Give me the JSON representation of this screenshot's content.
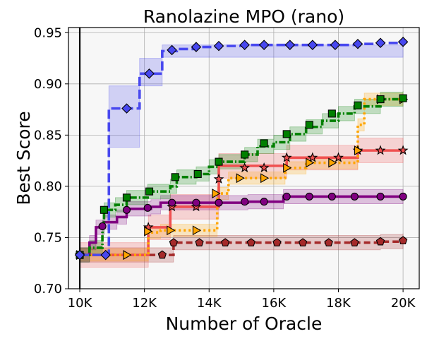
{
  "chart_data": {
    "type": "line",
    "title": "Ranolazine MPO (rano)",
    "xlabel": "Number of Oracle",
    "ylabel": "Best Score",
    "xlim": [
      9650,
      20500
    ],
    "ylim": [
      0.7,
      0.955
    ],
    "xticks": [
      10000,
      12000,
      14000,
      16000,
      18000,
      20000
    ],
    "xtick_labels": [
      "10K",
      "12K",
      "14K",
      "16K",
      "18K",
      "20K"
    ],
    "yticks": [
      0.7,
      0.75,
      0.8,
      0.85,
      0.9,
      0.95
    ],
    "ytick_labels": [
      "0.70",
      "0.75",
      "0.80",
      "0.85",
      "0.90",
      "0.95"
    ],
    "grid": true,
    "vline_x": 10000,
    "series": [
      {
        "name": "brown-pentagon",
        "color": "#a52a2a",
        "dash": "9,5",
        "marker": "pentagon",
        "band": 0.007,
        "points": [
          [
            10000,
            0.733
          ],
          [
            10300,
            0.733
          ],
          [
            10900,
            0.733
          ],
          [
            12000,
            0.733
          ],
          [
            12550,
            0.733
          ],
          [
            12880,
            0.733
          ],
          [
            12900,
            0.745
          ],
          [
            13500,
            0.745
          ],
          [
            14200,
            0.745
          ],
          [
            14800,
            0.745
          ],
          [
            15500,
            0.745
          ],
          [
            16000,
            0.745
          ],
          [
            16600,
            0.745
          ],
          [
            17200,
            0.745
          ],
          [
            17900,
            0.745
          ],
          [
            18500,
            0.745
          ],
          [
            19300,
            0.746
          ],
          [
            20000,
            0.747
          ]
        ],
        "markers": [
          [
            10000,
            0.733
          ],
          [
            12550,
            0.733
          ],
          [
            12900,
            0.745
          ],
          [
            13700,
            0.745
          ],
          [
            14500,
            0.745
          ],
          [
            15300,
            0.745
          ],
          [
            16100,
            0.745
          ],
          [
            16900,
            0.745
          ],
          [
            17700,
            0.745
          ],
          [
            18500,
            0.745
          ],
          [
            19300,
            0.746
          ],
          [
            20000,
            0.747
          ]
        ]
      },
      {
        "name": "red-star",
        "color": "#f05050",
        "dash": "",
        "marker": "star",
        "band": 0.012,
        "points": [
          [
            10000,
            0.733
          ],
          [
            11000,
            0.733
          ],
          [
            12100,
            0.733
          ],
          [
            12120,
            0.76
          ],
          [
            12800,
            0.78
          ],
          [
            13600,
            0.78
          ],
          [
            14250,
            0.78
          ],
          [
            14300,
            0.82
          ],
          [
            15000,
            0.82
          ],
          [
            16350,
            0.82
          ],
          [
            16400,
            0.828
          ],
          [
            17500,
            0.828
          ],
          [
            18500,
            0.828
          ],
          [
            18600,
            0.835
          ],
          [
            20000,
            0.835
          ]
        ],
        "markers": [
          [
            10000,
            0.733
          ],
          [
            12120,
            0.76
          ],
          [
            12850,
            0.78
          ],
          [
            13600,
            0.78
          ],
          [
            14300,
            0.807
          ],
          [
            15100,
            0.818
          ],
          [
            15700,
            0.818
          ],
          [
            16400,
            0.828
          ],
          [
            17200,
            0.828
          ],
          [
            18000,
            0.828
          ],
          [
            18600,
            0.835
          ],
          [
            19300,
            0.835
          ],
          [
            20000,
            0.835
          ]
        ]
      },
      {
        "name": "orange-triangle",
        "color": "#ffa500",
        "dash": "3,4",
        "marker": "triangle",
        "band": 0.006,
        "points": [
          [
            10000,
            0.733
          ],
          [
            11500,
            0.733
          ],
          [
            12100,
            0.733
          ],
          [
            12120,
            0.755
          ],
          [
            12500,
            0.757
          ],
          [
            13500,
            0.757
          ],
          [
            14200,
            0.757
          ],
          [
            14250,
            0.793
          ],
          [
            14600,
            0.808
          ],
          [
            16300,
            0.808
          ],
          [
            16350,
            0.818
          ],
          [
            17000,
            0.823
          ],
          [
            18500,
            0.823
          ],
          [
            18600,
            0.86
          ],
          [
            18800,
            0.885
          ],
          [
            20000,
            0.885
          ]
        ],
        "markers": [
          [
            10000,
            0.733
          ],
          [
            11450,
            0.733
          ],
          [
            12100,
            0.756
          ],
          [
            12800,
            0.757
          ],
          [
            13600,
            0.757
          ],
          [
            14200,
            0.793
          ],
          [
            14950,
            0.808
          ],
          [
            15700,
            0.808
          ],
          [
            16400,
            0.818
          ],
          [
            17100,
            0.823
          ],
          [
            17800,
            0.823
          ],
          [
            18600,
            0.835
          ],
          [
            19300,
            0.885
          ],
          [
            20000,
            0.885
          ]
        ]
      },
      {
        "name": "purple-circle",
        "color": "#800080",
        "dash": "",
        "marker": "circle",
        "band": 0.007,
        "points": [
          [
            10000,
            0.733
          ],
          [
            10300,
            0.745
          ],
          [
            10500,
            0.76
          ],
          [
            10750,
            0.765
          ],
          [
            11150,
            0.77
          ],
          [
            11450,
            0.778
          ],
          [
            12200,
            0.78
          ],
          [
            12500,
            0.784
          ],
          [
            14300,
            0.784
          ],
          [
            15200,
            0.785
          ],
          [
            16100,
            0.785
          ],
          [
            16300,
            0.79
          ],
          [
            18000,
            0.79
          ],
          [
            20000,
            0.79
          ]
        ],
        "markers": [
          [
            10000,
            0.733
          ],
          [
            10700,
            0.761
          ],
          [
            11450,
            0.777
          ],
          [
            12100,
            0.779
          ],
          [
            12850,
            0.784
          ],
          [
            13600,
            0.784
          ],
          [
            14300,
            0.784
          ],
          [
            15100,
            0.785
          ],
          [
            15700,
            0.785
          ],
          [
            16400,
            0.79
          ],
          [
            17100,
            0.79
          ],
          [
            17800,
            0.79
          ],
          [
            18500,
            0.79
          ],
          [
            19300,
            0.79
          ],
          [
            20000,
            0.79
          ]
        ]
      },
      {
        "name": "green-square",
        "color": "#008000",
        "dash": "9,3,2,3",
        "marker": "square",
        "band": 0.007,
        "points": [
          [
            10000,
            0.733
          ],
          [
            10300,
            0.74
          ],
          [
            10700,
            0.76
          ],
          [
            10750,
            0.777
          ],
          [
            11100,
            0.782
          ],
          [
            11450,
            0.789
          ],
          [
            12100,
            0.795
          ],
          [
            12800,
            0.8
          ],
          [
            13000,
            0.809
          ],
          [
            13600,
            0.812
          ],
          [
            14000,
            0.819
          ],
          [
            14300,
            0.824
          ],
          [
            15100,
            0.831
          ],
          [
            15500,
            0.839
          ],
          [
            16000,
            0.843
          ],
          [
            16500,
            0.851
          ],
          [
            17000,
            0.858
          ],
          [
            17500,
            0.864
          ],
          [
            18000,
            0.871
          ],
          [
            18500,
            0.878
          ],
          [
            19300,
            0.885
          ],
          [
            20000,
            0.886
          ]
        ],
        "markers": [
          [
            10000,
            0.733
          ],
          [
            10750,
            0.777
          ],
          [
            11450,
            0.789
          ],
          [
            12150,
            0.795
          ],
          [
            12950,
            0.809
          ],
          [
            13650,
            0.812
          ],
          [
            14300,
            0.824
          ],
          [
            15100,
            0.831
          ],
          [
            15700,
            0.842
          ],
          [
            16400,
            0.851
          ],
          [
            17100,
            0.86
          ],
          [
            17800,
            0.871
          ],
          [
            18600,
            0.879
          ],
          [
            19300,
            0.885
          ],
          [
            20000,
            0.886
          ]
        ]
      },
      {
        "name": "blue-diamond",
        "color": "#4848ef",
        "dash": "13,5",
        "marker": "diamond",
        "band": 0.004,
        "points": [
          [
            10000,
            0.733
          ],
          [
            10850,
            0.733
          ],
          [
            10900,
            0.876
          ],
          [
            11800,
            0.876
          ],
          [
            11850,
            0.91
          ],
          [
            12500,
            0.91
          ],
          [
            12550,
            0.932
          ],
          [
            13000,
            0.934
          ],
          [
            13600,
            0.936
          ],
          [
            14300,
            0.937
          ],
          [
            15100,
            0.938
          ],
          [
            16400,
            0.938
          ],
          [
            17500,
            0.938
          ],
          [
            18500,
            0.939
          ],
          [
            19300,
            0.94
          ],
          [
            20000,
            0.941
          ]
        ],
        "markers": [
          [
            10000,
            0.733
          ],
          [
            10800,
            0.733
          ],
          [
            11450,
            0.876
          ],
          [
            12150,
            0.91
          ],
          [
            12850,
            0.933
          ],
          [
            13600,
            0.936
          ],
          [
            14300,
            0.937
          ],
          [
            15100,
            0.938
          ],
          [
            15700,
            0.938
          ],
          [
            16500,
            0.938
          ],
          [
            17200,
            0.938
          ],
          [
            17900,
            0.938
          ],
          [
            18600,
            0.939
          ],
          [
            19300,
            0.94
          ],
          [
            20000,
            0.941
          ]
        ],
        "bands": [
          [
            10850,
            0.733,
            0.733
          ],
          [
            10900,
            0.838,
            0.898
          ],
          [
            11800,
            0.838,
            0.898
          ],
          [
            11850,
            0.898,
            0.925
          ],
          [
            12500,
            0.898,
            0.925
          ],
          [
            12550,
            0.926,
            0.938
          ],
          [
            20000,
            0.937,
            0.944
          ]
        ]
      }
    ]
  }
}
